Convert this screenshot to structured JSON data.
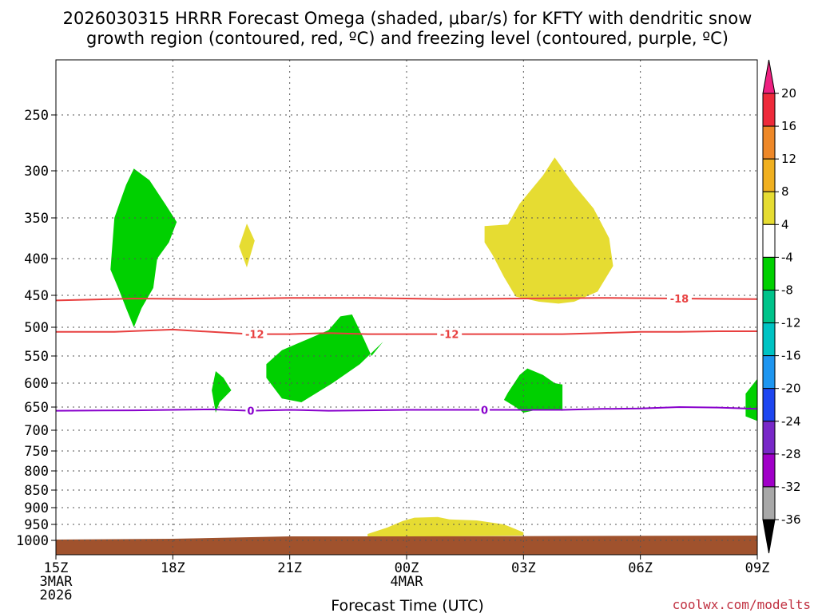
{
  "chart_data": {
    "type": "contour-time-height",
    "title_line1": "2026030315 HRRR Forecast Omega (shaded, μbar/s) for KFTY with dendritic snow",
    "title_line2": "growth region (contoured, red, ºC) and freezing level (contoured, purple, ºC)",
    "xlabel": "Forecast Time (UTC)",
    "credit": "coolwx.com/modelts",
    "x_range_hours": [
      0,
      18
    ],
    "x_ticks": [
      {
        "h": 0,
        "lines": [
          "15Z",
          "3MAR",
          "2026"
        ]
      },
      {
        "h": 3,
        "lines": [
          "18Z"
        ]
      },
      {
        "h": 6,
        "lines": [
          "21Z"
        ]
      },
      {
        "h": 9,
        "lines": [
          "00Z",
          "4MAR"
        ]
      },
      {
        "h": 12,
        "lines": [
          "03Z"
        ]
      },
      {
        "h": 15,
        "lines": [
          "06Z"
        ]
      },
      {
        "h": 18,
        "lines": [
          "09Z"
        ]
      }
    ],
    "y_ticks_hpa": [
      250,
      300,
      350,
      400,
      450,
      500,
      550,
      600,
      650,
      700,
      750,
      800,
      850,
      900,
      950,
      1000
    ],
    "y_range_hpa": [
      200,
      1025
    ],
    "terrain_hpa": 1000,
    "omega_regions": [
      {
        "color": "#00d000",
        "pts": [
          [
            1.4,
            415
          ],
          [
            1.5,
            350
          ],
          [
            1.8,
            315
          ],
          [
            2.0,
            298
          ],
          [
            2.4,
            310
          ],
          [
            2.8,
            335
          ],
          [
            3.1,
            355
          ],
          [
            2.9,
            380
          ],
          [
            2.6,
            400
          ],
          [
            2.5,
            440
          ],
          [
            2.2,
            470
          ],
          [
            2.0,
            500
          ],
          [
            1.8,
            470
          ],
          [
            1.6,
            440
          ]
        ]
      },
      {
        "color": "#e6dc32",
        "pts": [
          [
            4.7,
            385
          ],
          [
            4.9,
            357
          ],
          [
            5.1,
            378
          ],
          [
            4.9,
            412
          ]
        ]
      },
      {
        "color": "#00d000",
        "pts": [
          [
            7.0,
            505
          ],
          [
            7.3,
            483
          ],
          [
            7.6,
            480
          ],
          [
            7.9,
            520
          ],
          [
            8.1,
            550
          ],
          [
            8.4,
            525
          ],
          [
            7.8,
            565
          ],
          [
            7.1,
            600
          ],
          [
            6.3,
            640
          ],
          [
            5.8,
            632
          ],
          [
            5.4,
            590
          ],
          [
            5.4,
            565
          ],
          [
            5.8,
            540
          ]
        ]
      },
      {
        "color": "#00d000",
        "pts": [
          [
            4.0,
            615
          ],
          [
            4.1,
            578
          ],
          [
            4.3,
            590
          ],
          [
            4.5,
            615
          ],
          [
            4.2,
            640
          ],
          [
            4.1,
            662
          ]
        ]
      },
      {
        "color": "#e6dc32",
        "pts": [
          [
            11.0,
            360
          ],
          [
            11.6,
            358
          ],
          [
            11.9,
            335
          ],
          [
            12.5,
            305
          ],
          [
            12.8,
            288
          ],
          [
            13.3,
            315
          ],
          [
            13.8,
            340
          ],
          [
            14.2,
            375
          ],
          [
            14.3,
            410
          ],
          [
            13.9,
            445
          ],
          [
            13.3,
            460
          ],
          [
            12.9,
            463
          ],
          [
            12.4,
            460
          ],
          [
            11.8,
            452
          ],
          [
            11.5,
            425
          ],
          [
            11.2,
            395
          ],
          [
            11.0,
            380
          ]
        ]
      },
      {
        "color": "#00d000",
        "pts": [
          [
            11.6,
            620
          ],
          [
            11.9,
            585
          ],
          [
            12.1,
            573
          ],
          [
            12.5,
            585
          ],
          [
            12.8,
            600
          ],
          [
            13.0,
            603
          ],
          [
            13.0,
            658
          ],
          [
            12.4,
            655
          ],
          [
            12.0,
            662
          ],
          [
            11.8,
            650
          ],
          [
            11.5,
            635
          ]
        ]
      },
      {
        "color": "#00d000",
        "pts": [
          [
            17.7,
            622
          ],
          [
            18.0,
            592
          ],
          [
            18.0,
            680
          ],
          [
            17.7,
            670
          ]
        ]
      },
      {
        "color": "#e6dc32",
        "pts": [
          [
            8.0,
            980
          ],
          [
            8.5,
            960
          ],
          [
            8.9,
            940
          ],
          [
            9.2,
            930
          ],
          [
            9.8,
            928
          ],
          [
            10.1,
            935
          ],
          [
            10.8,
            938
          ],
          [
            11.5,
            950
          ],
          [
            12.0,
            975
          ],
          [
            12.0,
            985
          ],
          [
            8.0,
            990
          ]
        ]
      }
    ],
    "contours": [
      {
        "kind": "dendritic",
        "value": "-18",
        "color": "#e84040",
        "label": "-18",
        "label_h": 16.0,
        "pts": [
          [
            0,
            458
          ],
          [
            2,
            455
          ],
          [
            4,
            456
          ],
          [
            6,
            454
          ],
          [
            8,
            454
          ],
          [
            10,
            456
          ],
          [
            12,
            455
          ],
          [
            14,
            454
          ],
          [
            16,
            455
          ],
          [
            18,
            456
          ]
        ]
      },
      {
        "kind": "dendritic",
        "value": "-12",
        "color": "#e84040",
        "label": "-12",
        "label_h": 5.1,
        "label2": "-12",
        "label2_h": 10.1,
        "pts": [
          [
            0,
            508
          ],
          [
            1.5,
            508
          ],
          [
            3,
            504
          ],
          [
            4,
            508
          ],
          [
            5,
            512
          ],
          [
            6,
            512
          ],
          [
            7,
            510
          ],
          [
            8,
            512
          ],
          [
            9,
            512
          ],
          [
            10,
            512
          ],
          [
            11,
            512
          ],
          [
            12,
            512
          ],
          [
            13,
            512
          ],
          [
            14,
            510
          ],
          [
            15,
            508
          ],
          [
            16,
            508
          ],
          [
            17,
            507
          ],
          [
            18,
            507
          ]
        ]
      },
      {
        "kind": "freezing",
        "value": "0",
        "color": "#8800cc",
        "label": "0",
        "label_h": 5.0,
        "label2": "0",
        "label2_h": 11.0,
        "pts": [
          [
            0,
            658
          ],
          [
            2,
            657
          ],
          [
            4,
            655
          ],
          [
            5,
            658
          ],
          [
            6,
            656
          ],
          [
            7,
            658
          ],
          [
            8,
            657
          ],
          [
            9,
            656
          ],
          [
            10,
            656
          ],
          [
            11,
            656
          ],
          [
            12,
            656
          ],
          [
            13,
            656
          ],
          [
            14,
            654
          ],
          [
            15,
            653
          ],
          [
            16,
            650
          ],
          [
            17,
            651
          ],
          [
            18,
            654
          ]
        ]
      }
    ],
    "colorbar": {
      "labels": [
        "20",
        "16",
        "12",
        "8",
        "4",
        "-4",
        "-8",
        "-12",
        "-16",
        "-20",
        "-24",
        "-28",
        "-32",
        "-36"
      ],
      "colors": [
        "#ee2a3a",
        "#ee8828",
        "#f0b020",
        "#e6dc32",
        "#ffffff",
        "#00d000",
        "#00c38a",
        "#00c3c3",
        "#1e96f0",
        "#1e46f0",
        "#7828c8",
        "#a000c8",
        "#a8a8a8"
      ],
      "top_triangle": "#ee2080",
      "bottom_triangle": "#000000"
    }
  }
}
